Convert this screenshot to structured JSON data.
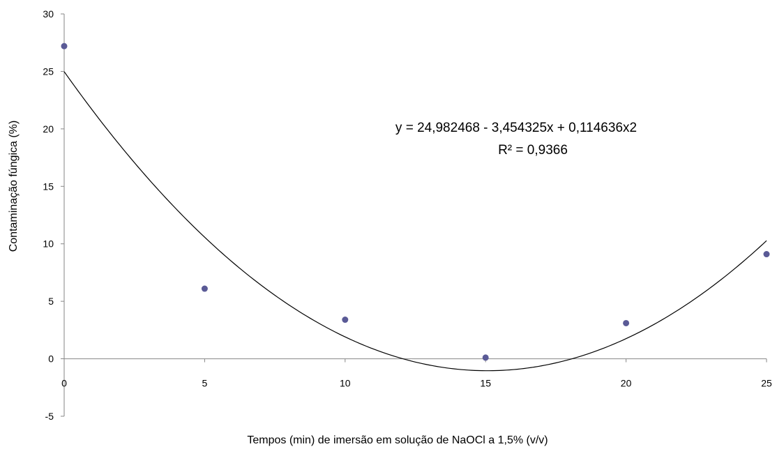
{
  "chart_data": {
    "type": "scatter",
    "title": "",
    "xlabel": "Tempos (min) de imersão em solução de NaOCl a 1,5% (v/v)",
    "ylabel": "Contaminação fúngica (%)",
    "xlim": [
      0,
      25
    ],
    "ylim": [
      -5,
      30
    ],
    "x_ticks": [
      0,
      5,
      10,
      15,
      20,
      25
    ],
    "y_ticks": [
      -5,
      0,
      5,
      10,
      15,
      20,
      25,
      30
    ],
    "grid": false,
    "legend": "none",
    "marker_color": "#5a5a96",
    "series": [
      {
        "x": [
          0,
          5,
          10,
          15,
          20,
          25
        ],
        "y": [
          27.2,
          6.1,
          3.4,
          0.1,
          3.1,
          9.1
        ]
      }
    ],
    "trendline": {
      "type": "polynomial",
      "color": "#000000",
      "coefficients": [
        24.982468,
        -3.454325,
        0.114636
      ],
      "equation": "y = 24,982468 - 3,454325x + 0,114636x2",
      "r_squared": "R² = 0,9366"
    }
  }
}
